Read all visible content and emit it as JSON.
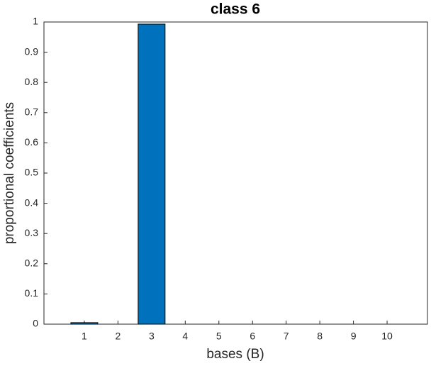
{
  "chart_data": {
    "type": "bar",
    "title": "class 6",
    "x_label": "bases (B)",
    "y_label": "proportional coefficients",
    "x": [
      1,
      2,
      3,
      4,
      5,
      6,
      7,
      8,
      9,
      10
    ],
    "values": [
      0.005,
      0,
      0.993,
      0,
      0,
      0,
      0,
      0,
      0,
      0
    ],
    "color": "#0072bd",
    "xlim": [
      -0.2,
      11.2
    ],
    "xticks": [
      1,
      2,
      3,
      4,
      5,
      6,
      7,
      8,
      9,
      10
    ],
    "ylim": [
      0,
      1
    ],
    "yticks": [
      0,
      0.1,
      0.2,
      0.3,
      0.4,
      0.5,
      0.6,
      0.7,
      0.8,
      0.9,
      1
    ],
    "grid": false
  }
}
